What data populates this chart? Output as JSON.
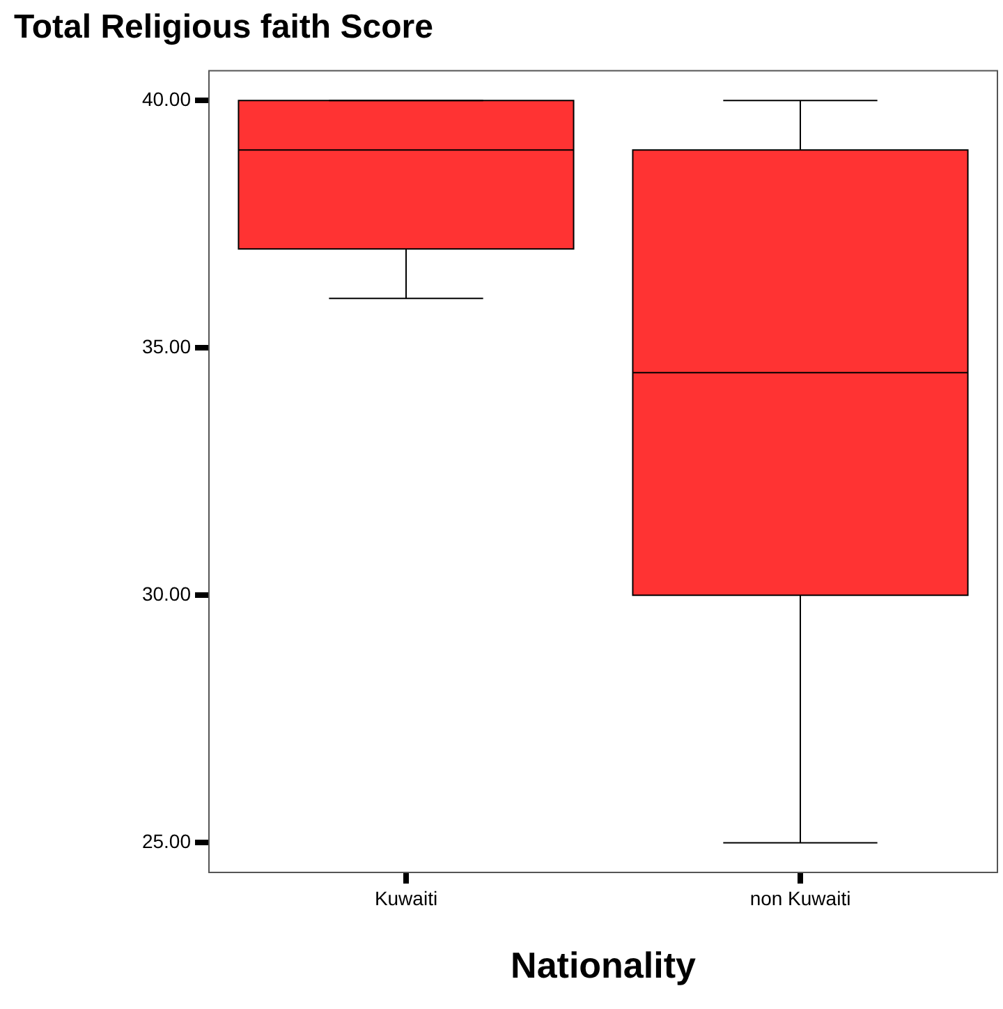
{
  "chart_data": {
    "type": "box",
    "ylabel": "Total Religious faith Score",
    "xlabel": "Nationality",
    "categories": [
      "Kuwaiti",
      "non Kuwaiti"
    ],
    "color": "#ff3333",
    "boxes": [
      {
        "low": 36,
        "q1": 37,
        "median": 39,
        "q3": 40,
        "high": 40
      },
      {
        "low": 25,
        "q1": 30,
        "median": 34.5,
        "q3": 39,
        "high": 40
      }
    ],
    "ylim": [
      24.4,
      40.6
    ],
    "yticks": [
      {
        "value": 25,
        "label": "25.00"
      },
      {
        "value": 30,
        "label": "30.00"
      },
      {
        "value": 35,
        "label": "35.00"
      },
      {
        "value": 40,
        "label": "40.00"
      }
    ]
  }
}
